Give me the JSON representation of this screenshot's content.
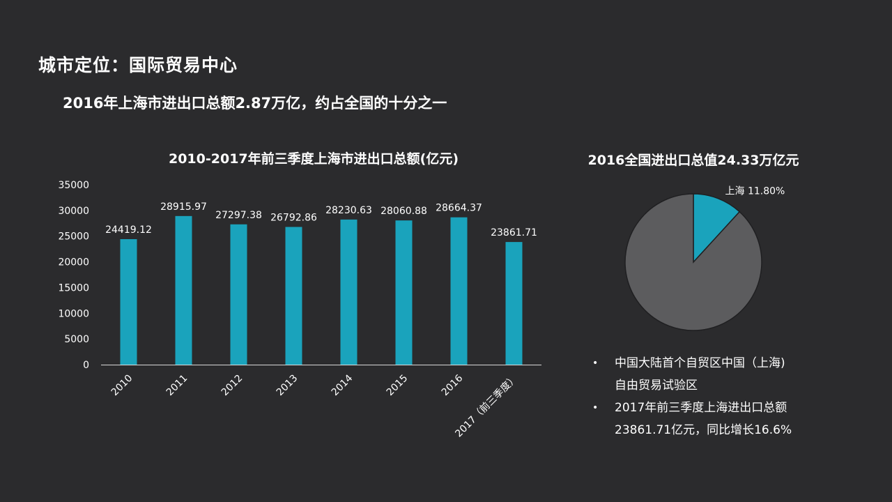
{
  "slide": {
    "title": "城市定位：国际贸易中心",
    "subtitle": "2016年上海市进出口总额2.87万亿，约占全国的十分之一"
  },
  "colors": {
    "background": "#2b2b2d",
    "bar": "#1aa3bc",
    "pie_highlight": "#1aa3bc",
    "pie_rest": "#5c5c5e",
    "text": "#ffffff"
  },
  "chart_data": [
    {
      "type": "bar",
      "title": "2010-2017年前三季度上海市进出口总额(亿元)",
      "categories": [
        "2010",
        "2011",
        "2012",
        "2013",
        "2014",
        "2015",
        "2016",
        "2017（前三季度）"
      ],
      "values": [
        24419.12,
        28915.97,
        27297.38,
        26792.86,
        28230.63,
        28060.88,
        28664.37,
        23861.71
      ],
      "value_labels": [
        "24419.12",
        "28915.97",
        "27297.38",
        "26792.86",
        "28230.63",
        "28060.88",
        "28664.37",
        "23861.71"
      ],
      "ylim": [
        0,
        35000
      ],
      "yticks": [
        "0",
        "5000",
        "10000",
        "15000",
        "20000",
        "25000",
        "30000",
        "35000"
      ],
      "grid": false
    },
    {
      "type": "pie",
      "title": "2016全国进出口总值24.33万亿元",
      "slices": [
        {
          "name": "上海",
          "value": 11.8,
          "label": "上海  11.80%"
        },
        {
          "name": "",
          "value": 88.2,
          "label": ""
        }
      ]
    }
  ],
  "notes": [
    {
      "line1": "中国大陆首个自贸区中国（上海)",
      "line2": "自由贸易试验区"
    },
    {
      "line1": "2017年前三季度上海进出口总额",
      "line2": "23861.71亿元，同比增长16.6%"
    }
  ]
}
